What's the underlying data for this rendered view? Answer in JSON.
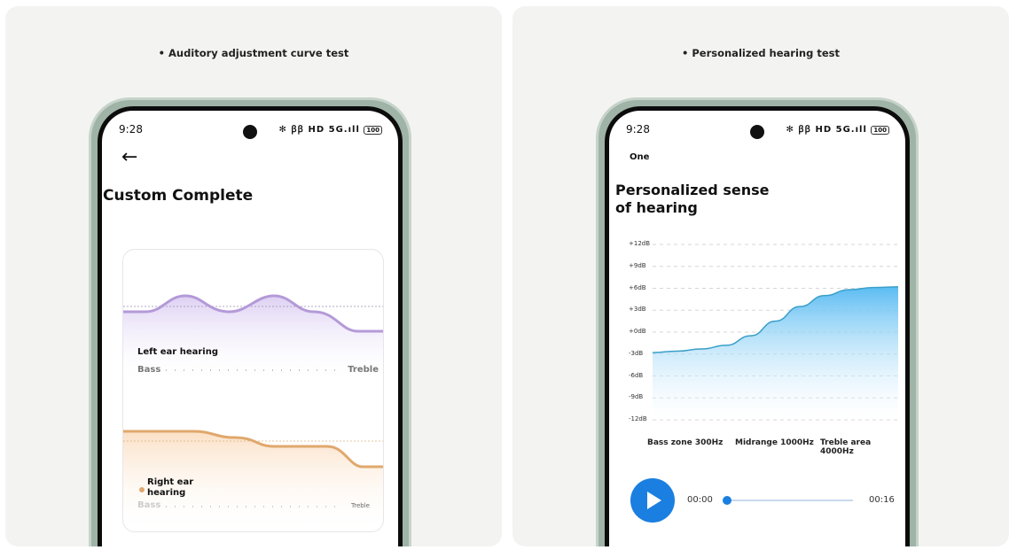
{
  "left_panel": {
    "caption": "• Auditory adjustment curve test",
    "status": {
      "time": "9:28",
      "icons": "✻ ꞵꞵ HD 5G.ıll",
      "battery": "100"
    },
    "back_icon": "arrow-left-icon",
    "title": "Custom Complete",
    "left_ear": {
      "label": "Left ear hearing",
      "bass": "Bass",
      "treble": "Treble",
      "color": "#b49ad8"
    },
    "right_ear": {
      "label": "Right ear hearing",
      "bass": "Bass",
      "treble": "Treble",
      "color": "#e0a86c"
    }
  },
  "right_panel": {
    "caption": "• Personalized hearing test",
    "status": {
      "time": "9:28",
      "icons": "✻ ꞵꞵ HD 5G.ıll",
      "battery": "100"
    },
    "step": "One",
    "title_line1": "Personalized sense",
    "title_line2": "of hearing",
    "player": {
      "current": "00:00",
      "total": "00:16",
      "progress": 0,
      "accent": "#1a7fe0"
    }
  },
  "chart_data": {
    "type": "area",
    "ylabels": [
      "+12dB",
      "+9dB",
      "+6dB",
      "+3dB",
      "+0dB",
      "-3dB",
      "-6dB",
      "-9dB",
      "-12dB"
    ],
    "ylim": [
      -12,
      12
    ],
    "xlabels": [
      "Bass zone 300Hz",
      "Midrange 1000Hz",
      "Treble area 4000Hz"
    ],
    "values": [
      -2.8,
      -2.6,
      -2.3,
      -1.8,
      -0.5,
      1.5,
      3.5,
      5.0,
      5.8,
      6.1,
      6.2
    ],
    "grid": true,
    "color": "#5bbcf2"
  }
}
